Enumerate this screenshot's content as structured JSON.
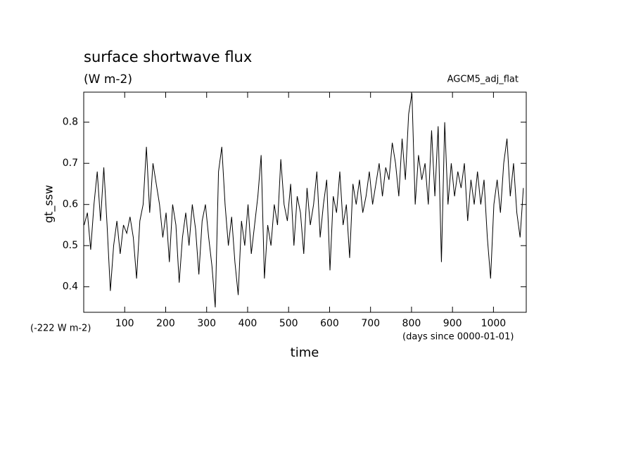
{
  "chart_data": {
    "type": "line",
    "title": "surface shortwave flux",
    "subtitle": "(W m-2)",
    "annotation": "AGCM5_adj_flat",
    "offset_note": "(-222 W m-2)",
    "x_units": "(days since 0000-01-01)",
    "xlabel": "time",
    "ylabel": "gt_ssw",
    "color": "#000000",
    "xlim": [
      0,
      1080
    ],
    "ylim": [
      0.338,
      0.873
    ],
    "xticks": [
      100,
      200,
      300,
      400,
      500,
      600,
      700,
      800,
      900,
      1000
    ],
    "yticks": [
      0.4,
      0.5,
      0.6,
      0.7,
      0.8
    ],
    "x": [
      1,
      9,
      17,
      25,
      33,
      41,
      49,
      57,
      65,
      73,
      81,
      89,
      97,
      105,
      113,
      121,
      129,
      137,
      145,
      153,
      161,
      169,
      177,
      185,
      193,
      201,
      209,
      217,
      225,
      233,
      241,
      249,
      257,
      265,
      273,
      281,
      289,
      297,
      305,
      313,
      321,
      329,
      337,
      345,
      353,
      361,
      369,
      377,
      385,
      393,
      401,
      409,
      417,
      425,
      433,
      441,
      449,
      457,
      465,
      473,
      481,
      489,
      497,
      505,
      513,
      521,
      529,
      537,
      545,
      553,
      561,
      569,
      577,
      585,
      593,
      601,
      609,
      617,
      625,
      633,
      641,
      649,
      657,
      665,
      673,
      681,
      689,
      697,
      705,
      713,
      721,
      729,
      737,
      745,
      753,
      761,
      769,
      777,
      785,
      793,
      801,
      809,
      817,
      825,
      833,
      841,
      849,
      857,
      865,
      873,
      881,
      889,
      897,
      905,
      913,
      921,
      929,
      937,
      945,
      953,
      961,
      969,
      977,
      985,
      993,
      1001,
      1009,
      1017,
      1025,
      1033,
      1041,
      1049,
      1057,
      1065,
      1073
    ],
    "values": [
      0.55,
      0.58,
      0.49,
      0.6,
      0.68,
      0.56,
      0.69,
      0.55,
      0.39,
      0.5,
      0.56,
      0.48,
      0.55,
      0.53,
      0.57,
      0.52,
      0.42,
      0.56,
      0.6,
      0.74,
      0.58,
      0.7,
      0.65,
      0.6,
      0.52,
      0.58,
      0.46,
      0.6,
      0.55,
      0.41,
      0.52,
      0.58,
      0.5,
      0.6,
      0.54,
      0.43,
      0.56,
      0.6,
      0.52,
      0.45,
      0.35,
      0.68,
      0.74,
      0.6,
      0.5,
      0.57,
      0.46,
      0.38,
      0.56,
      0.5,
      0.6,
      0.48,
      0.55,
      0.62,
      0.72,
      0.42,
      0.55,
      0.5,
      0.6,
      0.55,
      0.71,
      0.6,
      0.56,
      0.65,
      0.5,
      0.62,
      0.58,
      0.48,
      0.64,
      0.55,
      0.6,
      0.68,
      0.52,
      0.6,
      0.66,
      0.44,
      0.62,
      0.58,
      0.68,
      0.55,
      0.6,
      0.47,
      0.65,
      0.6,
      0.66,
      0.58,
      0.62,
      0.68,
      0.6,
      0.65,
      0.7,
      0.62,
      0.69,
      0.66,
      0.75,
      0.7,
      0.62,
      0.76,
      0.66,
      0.82,
      0.87,
      0.6,
      0.72,
      0.66,
      0.7,
      0.6,
      0.78,
      0.62,
      0.79,
      0.46,
      0.8,
      0.6,
      0.7,
      0.62,
      0.68,
      0.64,
      0.7,
      0.56,
      0.66,
      0.6,
      0.68,
      0.6,
      0.66,
      0.52,
      0.42,
      0.6,
      0.66,
      0.58,
      0.7,
      0.76,
      0.62,
      0.7,
      0.58,
      0.52,
      0.64
    ]
  }
}
